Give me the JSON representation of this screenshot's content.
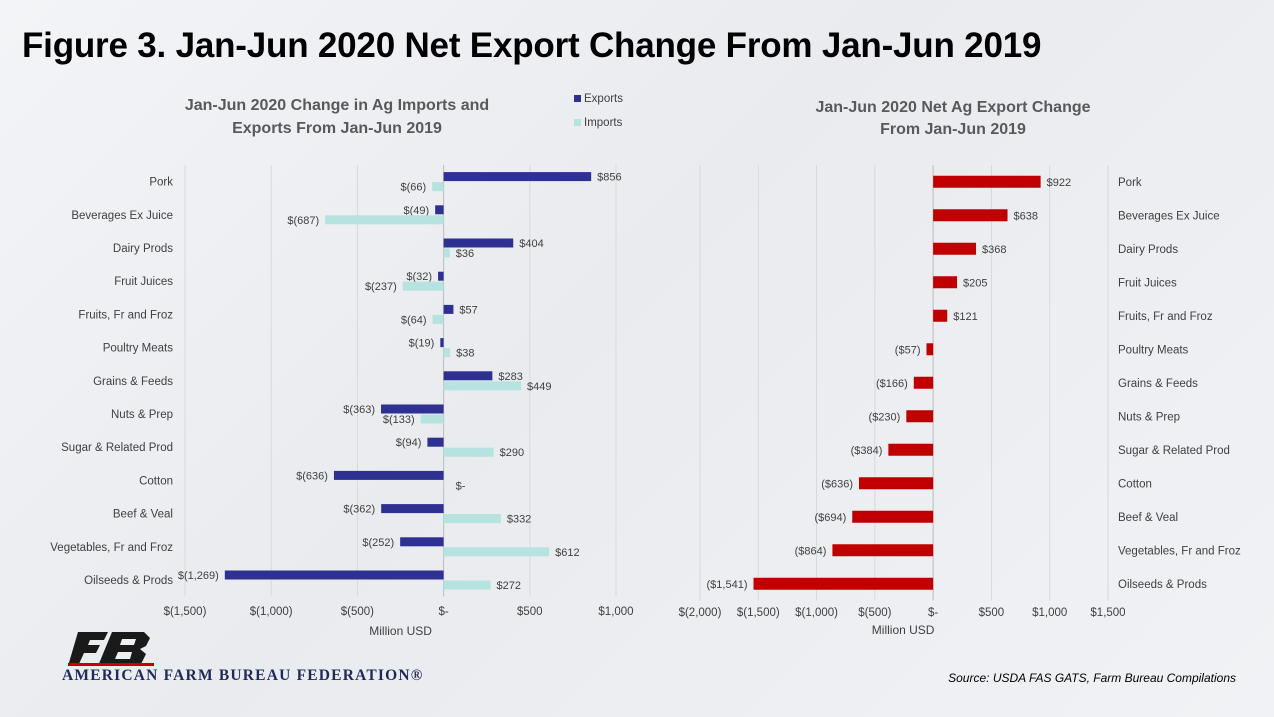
{
  "page": {
    "title": "Figure 3. Jan-Jun 2020 Net Export Change From Jan-Jun 2019",
    "source": "Source: USDA FAS GATS, Farm Bureau Compilations",
    "logo_text": "AMERICAN FARM BUREAU FEDERATION®",
    "logo_mark": "FB"
  },
  "chart_data": [
    {
      "type": "bar",
      "orientation": "horizontal",
      "title_lines": [
        "Jan-Jun 2020 Change in Ag Imports and",
        "Exports From Jan-Jun 2019"
      ],
      "xlabel": "Million USD",
      "ylabel": "",
      "xlim": [
        -1500,
        1000
      ],
      "x_ticks": [
        -1500,
        -1000,
        -500,
        0,
        500,
        1000
      ],
      "x_tick_labels": [
        "$(1,500)",
        "$(1,000)",
        "$(500)",
        "$-",
        "$500",
        "$1,000"
      ],
      "grid": "vertical",
      "legend_position": "top-right",
      "categories": [
        "Pork",
        "Beverages Ex Juice",
        "Dairy Prods",
        "Fruit Juices",
        "Fruits, Fr and Froz",
        "Poultry Meats",
        "Grains & Feeds",
        "Nuts & Prep",
        "Sugar & Related Prod",
        "Cotton",
        "Beef & Veal",
        "Vegetables, Fr and Froz",
        "Oilseeds & Prods"
      ],
      "series": [
        {
          "name": "Exports",
          "color": "#2e3192",
          "values": [
            856,
            -49,
            404,
            -32,
            57,
            -19,
            283,
            -363,
            -94,
            -636,
            -362,
            -252,
            -1269
          ],
          "labels": [
            "$856",
            "$(49)",
            "$404",
            "$(32)",
            "$57",
            "$(19)",
            "$283",
            "$(363)",
            "$(94)",
            "$(636)",
            "$(362)",
            "$(252)",
            "$(1,269)"
          ]
        },
        {
          "name": "Imports",
          "color": "#b5e3e0",
          "values": [
            -66,
            -687,
            36,
            -237,
            -64,
            38,
            449,
            -133,
            290,
            0,
            332,
            612,
            272
          ],
          "labels": [
            "$(66)",
            "$(687)",
            "$36",
            "$(237)",
            "$(64)",
            "$38",
            "$449",
            "$(133)",
            "$290",
            "$-",
            "$332",
            "$612",
            "$272"
          ]
        }
      ]
    },
    {
      "type": "bar",
      "orientation": "horizontal",
      "title_lines": [
        "Jan-Jun 2020 Net Ag Export Change",
        "From Jan-Jun 2019"
      ],
      "xlabel": "Million USD",
      "ylabel": "",
      "xlim": [
        -2000,
        1500
      ],
      "x_ticks": [
        -2000,
        -1500,
        -1000,
        -500,
        0,
        500,
        1000,
        1500
      ],
      "x_tick_labels": [
        "$(2,000)",
        "$(1,500)",
        "$(1,000)",
        "$(500)",
        "$-",
        "$500",
        "$1,000",
        "$1,500"
      ],
      "grid": "vertical",
      "legend_position": "none",
      "categories": [
        "Pork",
        "Beverages Ex Juice",
        "Dairy Prods",
        "Fruit Juices",
        "Fruits, Fr and Froz",
        "Poultry Meats",
        "Grains & Feeds",
        "Nuts & Prep",
        "Sugar & Related Prod",
        "Cotton",
        "Beef & Veal",
        "Vegetables, Fr and Froz",
        "Oilseeds & Prods"
      ],
      "series": [
        {
          "name": "",
          "color": "#c00000",
          "values": [
            922,
            638,
            368,
            205,
            121,
            -57,
            -166,
            -230,
            -384,
            -636,
            -694,
            -864,
            -1541
          ],
          "labels": [
            "$922",
            "$638",
            "$368",
            "$205",
            "$121",
            "($57)",
            "($166)",
            "($230)",
            "($384)",
            "($636)",
            "($694)",
            "($864)",
            "($1,541)"
          ]
        }
      ]
    }
  ]
}
